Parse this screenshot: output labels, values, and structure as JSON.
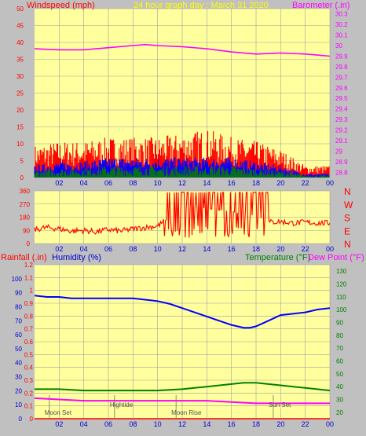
{
  "header": {
    "left_label": "Windspeed (mph)",
    "center_label": "24 hour graph day : March 31 2020",
    "right_label": "Barometer (.in)"
  },
  "colors": {
    "background": "#c0c0c0",
    "plot_bg": "#ffff9e",
    "grid": "#a0a0a0",
    "wind_gust": "#ff0000",
    "wind_avg": "#0000ff",
    "wind_low": "#008000",
    "barometer": "#ff00ff",
    "direction": "#ff0000",
    "rainfall": "#ff0000",
    "humidity": "#0000ff",
    "temperature": "#008000",
    "dewpoint": "#ff00ff",
    "moon_marker": "#707070"
  },
  "chart_data": [
    {
      "type": "line",
      "name": "wind-barometer",
      "x_ticks": [
        "02",
        "04",
        "06",
        "08",
        "10",
        "12",
        "14",
        "16",
        "18",
        "20",
        "22",
        "00"
      ],
      "y_left_ticks": [
        "0",
        "5",
        "10",
        "15",
        "20",
        "25",
        "30",
        "35",
        "40",
        "45",
        "50"
      ],
      "y_left_range": [
        0,
        50
      ],
      "y_right_ticks": [
        "28.8",
        "28.9",
        "29",
        "29.1",
        "29.2",
        "29.3",
        "29.4",
        "29.5",
        "29.6",
        "29.7",
        "29.8",
        "29.9",
        "30",
        "30.1",
        "30.2",
        "30.3"
      ],
      "y_right_range": [
        28.75,
        30.35
      ],
      "grid": true,
      "series": [
        {
          "label": "Windspeed (mph)",
          "kind": "gust",
          "hours": [
            0,
            2,
            4,
            6,
            8,
            10,
            12,
            14,
            16,
            18,
            20,
            22,
            24
          ],
          "values": [
            8,
            9,
            9,
            10,
            10,
            10,
            11,
            12,
            10,
            9,
            7,
            3,
            3
          ]
        },
        {
          "label": "Windspeed (mph)",
          "kind": "average",
          "hours": [
            0,
            2,
            4,
            6,
            8,
            10,
            12,
            14,
            16,
            18,
            20,
            22,
            24
          ],
          "values": [
            3,
            4,
            4,
            5,
            5,
            5,
            5,
            5,
            5,
            4,
            3,
            1,
            1
          ]
        },
        {
          "label": "Barometer (.in)",
          "hours": [
            0,
            2,
            3,
            4,
            6,
            8,
            9,
            10,
            12,
            14,
            16,
            18,
            20,
            22,
            23,
            24
          ],
          "values": [
            29.97,
            29.96,
            29.96,
            29.96,
            29.98,
            30.0,
            30.01,
            30.0,
            29.99,
            29.97,
            29.94,
            29.92,
            29.93,
            29.92,
            29.91,
            29.9
          ]
        }
      ]
    },
    {
      "type": "scatter",
      "name": "wind-direction",
      "x_ticks": [
        "02",
        "04",
        "06",
        "08",
        "10",
        "12",
        "14",
        "16",
        "18",
        "20",
        "22",
        "00"
      ],
      "y_ticks": [
        "0",
        "90",
        "180",
        "270",
        "360"
      ],
      "y_range": [
        0,
        360
      ],
      "compass": [
        "N",
        "W",
        "S",
        "E",
        "N"
      ],
      "grid": true,
      "series": [
        {
          "label": "Wind direction",
          "hours": [
            0,
            1,
            2,
            3,
            4,
            5,
            6,
            7,
            8,
            9,
            10,
            11,
            12,
            13,
            14,
            15,
            16,
            17,
            18,
            19,
            20,
            21,
            22,
            23,
            24
          ],
          "values": [
            95,
            110,
            100,
            85,
            90,
            80,
            95,
            85,
            100,
            110,
            120,
            180,
            220,
            250,
            240,
            230,
            220,
            200,
            190,
            145,
            150,
            140,
            145,
            140,
            140
          ]
        }
      ]
    },
    {
      "type": "line",
      "name": "rain-humidity-temperature",
      "x_ticks": [
        "02",
        "04",
        "06",
        "08",
        "10",
        "12",
        "14",
        "16",
        "18",
        "20",
        "22",
        "00"
      ],
      "rain_ticks": [
        "0",
        "0.1",
        "0.2",
        "0.3",
        "0.4",
        "0.5",
        "0.6",
        "0.7",
        "0.8",
        "0.9",
        "1",
        "1.1",
        "1.2"
      ],
      "humidity_ticks": [
        "0",
        "10",
        "20",
        "30",
        "40",
        "50",
        "60",
        "70",
        "80",
        "90",
        "100"
      ],
      "temp_ticks": [
        "20",
        "30",
        "40",
        "50",
        "60",
        "70",
        "80",
        "90",
        "100",
        "110",
        "120",
        "130"
      ],
      "y_left_range": [
        0,
        1.2
      ],
      "y_right_range": [
        15,
        135
      ],
      "grid": true,
      "annotations": [
        "Moon Set",
        "Hightide",
        "Moon Rise",
        "Sun Set"
      ],
      "annotation_hours": [
        1.2,
        6.5,
        11.5,
        19.4
      ],
      "series": [
        {
          "label": "Rainfall (.in)",
          "hours": [
            0,
            24
          ],
          "values": [
            0,
            0
          ]
        },
        {
          "label": "Humidity (%)",
          "hours": [
            0,
            1,
            2,
            3,
            4,
            5,
            6,
            7,
            8,
            9,
            10,
            11,
            12,
            13,
            14,
            15,
            16,
            17,
            17.5,
            18,
            19,
            20,
            21,
            22,
            23,
            24
          ],
          "values": [
            88,
            87,
            87,
            86,
            86,
            86,
            86,
            86,
            86,
            85,
            84,
            82,
            79,
            76,
            73,
            70,
            67,
            65,
            65,
            66,
            70,
            74,
            75,
            76,
            78,
            79
          ]
        },
        {
          "label": "Temperature (°F)",
          "hours": [
            0,
            2,
            4,
            6,
            8,
            10,
            12,
            14,
            16,
            17,
            18,
            19,
            20,
            22,
            24
          ],
          "values": [
            38,
            38,
            37,
            37,
            37,
            37,
            38,
            40,
            42,
            43,
            43,
            42,
            41,
            39,
            37
          ]
        },
        {
          "label": "Dew Point (°F)",
          "hours": [
            0,
            2,
            4,
            6,
            8,
            10,
            12,
            14,
            16,
            18,
            20,
            22,
            24
          ],
          "values": [
            31,
            30,
            29,
            29,
            29,
            29,
            29,
            29,
            28,
            27,
            27,
            27,
            27
          ]
        }
      ]
    }
  ],
  "bottom_legend": {
    "rainfall": "Rainfall (.in)",
    "humidity": "Humidity (%)",
    "temperature": "Temperature (°F)",
    "dewpoint": "Dew Point (°F)"
  }
}
